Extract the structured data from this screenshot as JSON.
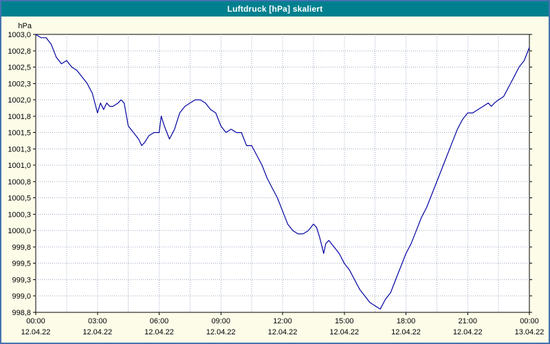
{
  "window": {
    "title": "Luftdruck [hPa] skaliert"
  },
  "colors": {
    "title_bar": "#00808f",
    "title_text": "#ffffff",
    "window_bg": "#fcfce8",
    "window_border": "#4472b0",
    "plot_bg": "#ffffff",
    "plot_border": "#000000",
    "grid": "#98a4c0",
    "line": "#0000a0",
    "axis_text": "#000000"
  },
  "chart_data": {
    "type": "line",
    "title": "Luftdruck [hPa] skaliert",
    "xlabel": "",
    "ylabel": "hPa",
    "ylim": [
      998.75,
      1003.0
    ],
    "y_tick_step": 0.25,
    "y_tick_labels": [
      "1003,0",
      "1002,8",
      "1002,5",
      "1002,3",
      "1002,0",
      "1001,8",
      "1001,5",
      "1001,3",
      "1001,0",
      "1000,8",
      "1000,5",
      "1000,3",
      "1000,0",
      "999,8",
      "999,5",
      "999,3",
      "999,0",
      "998,8"
    ],
    "x_range_hours": [
      0,
      24
    ],
    "x_grid_step": 1.5,
    "grid": true,
    "legend": "none",
    "x_ticks": [
      {
        "hour": 0,
        "time": "00:00",
        "date": "12.04.22"
      },
      {
        "hour": 3,
        "time": "03:00",
        "date": "12.04.22"
      },
      {
        "hour": 6,
        "time": "06:00",
        "date": "12.04.22"
      },
      {
        "hour": 9,
        "time": "09:00",
        "date": "12.04.22"
      },
      {
        "hour": 12,
        "time": "12:00",
        "date": "12.04.22"
      },
      {
        "hour": 15,
        "time": "15:00",
        "date": "12.04.22"
      },
      {
        "hour": 18,
        "time": "18:00",
        "date": "12.04.22"
      },
      {
        "hour": 21,
        "time": "21:00",
        "date": "12.04.22"
      },
      {
        "hour": 24,
        "time": "00:00",
        "date": "13.04.22"
      }
    ],
    "series": [
      {
        "name": "Luftdruck [hPa]",
        "x_hours": [
          0,
          0.25,
          0.5,
          0.75,
          1.0,
          1.25,
          1.5,
          1.75,
          2.0,
          2.25,
          2.5,
          2.75,
          3.0,
          3.15,
          3.3,
          3.45,
          3.6,
          3.75,
          4.0,
          4.15,
          4.3,
          4.5,
          4.75,
          5.0,
          5.15,
          5.3,
          5.5,
          5.75,
          6.0,
          6.1,
          6.25,
          6.5,
          6.75,
          7.0,
          7.25,
          7.5,
          7.75,
          8.0,
          8.25,
          8.5,
          8.75,
          9.0,
          9.25,
          9.5,
          9.75,
          10.0,
          10.25,
          10.5,
          10.75,
          11.0,
          11.25,
          11.5,
          11.75,
          12.0,
          12.25,
          12.5,
          12.75,
          13.0,
          13.25,
          13.5,
          13.65,
          13.8,
          14.0,
          14.1,
          14.25,
          14.5,
          14.75,
          15.0,
          15.25,
          15.5,
          15.75,
          16.0,
          16.25,
          16.5,
          16.75,
          17.0,
          17.25,
          17.5,
          17.75,
          18.0,
          18.25,
          18.5,
          18.75,
          19.0,
          19.25,
          19.5,
          19.75,
          20.0,
          20.25,
          20.5,
          20.75,
          21.0,
          21.25,
          21.5,
          21.75,
          22.0,
          22.15,
          22.3,
          22.5,
          22.75,
          23.0,
          23.25,
          23.5,
          23.75,
          24.0
        ],
        "values": [
          1003.0,
          1002.95,
          1002.95,
          1002.85,
          1002.65,
          1002.55,
          1002.6,
          1002.5,
          1002.45,
          1002.35,
          1002.25,
          1002.1,
          1001.8,
          1001.95,
          1001.85,
          1001.95,
          1001.9,
          1001.9,
          1001.95,
          1002.0,
          1001.95,
          1001.6,
          1001.5,
          1001.4,
          1001.3,
          1001.35,
          1001.45,
          1001.5,
          1001.5,
          1001.75,
          1001.6,
          1001.4,
          1001.55,
          1001.8,
          1001.9,
          1001.95,
          1002.0,
          1002.0,
          1001.95,
          1001.85,
          1001.8,
          1001.6,
          1001.5,
          1001.55,
          1001.5,
          1001.5,
          1001.3,
          1001.3,
          1001.15,
          1001.0,
          1000.8,
          1000.65,
          1000.5,
          1000.3,
          1000.1,
          1000.0,
          999.95,
          999.95,
          1000.0,
          1000.1,
          1000.05,
          999.9,
          999.65,
          999.8,
          999.85,
          999.75,
          999.65,
          999.5,
          999.4,
          999.25,
          999.1,
          999.0,
          998.9,
          998.85,
          998.8,
          998.95,
          999.05,
          999.25,
          999.45,
          999.65,
          999.8,
          1000.0,
          1000.2,
          1000.35,
          1000.55,
          1000.75,
          1000.95,
          1001.15,
          1001.35,
          1001.55,
          1001.7,
          1001.8,
          1001.8,
          1001.85,
          1001.9,
          1001.95,
          1001.9,
          1001.95,
          1002.0,
          1002.05,
          1002.2,
          1002.35,
          1002.5,
          1002.6,
          1002.8
        ]
      }
    ]
  }
}
